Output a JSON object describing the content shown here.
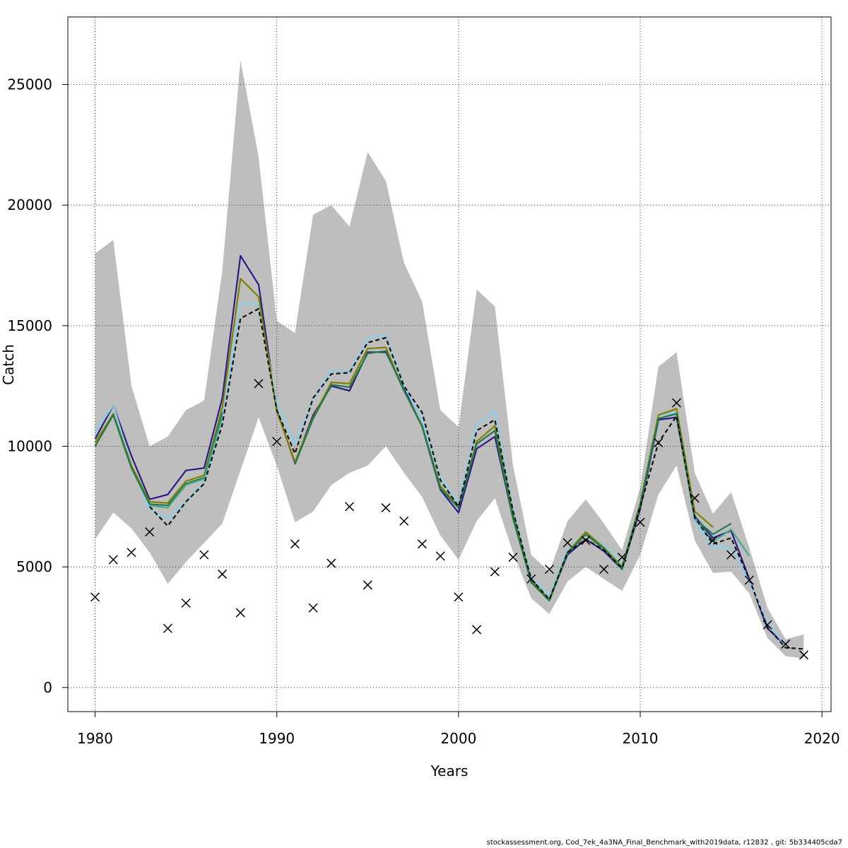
{
  "chart_data": {
    "type": "line",
    "xlabel": "Years",
    "ylabel": "Catch",
    "xlim": [
      1978.5,
      2020.5
    ],
    "ylim": [
      -1000,
      27800
    ],
    "xticks": [
      1980,
      1990,
      2000,
      2010,
      2020
    ],
    "yticks": [
      0,
      5000,
      10000,
      15000,
      20000,
      25000
    ],
    "grid": true,
    "years": [
      1980,
      1981,
      1982,
      1983,
      1984,
      1985,
      1986,
      1987,
      1988,
      1989,
      1990,
      1991,
      1992,
      1993,
      1994,
      1995,
      1996,
      1997,
      1998,
      1999,
      2000,
      2001,
      2002,
      2003,
      2004,
      2005,
      2006,
      2007,
      2008,
      2009,
      2010,
      2011,
      2012,
      2013,
      2014,
      2015,
      2016,
      2017,
      2018,
      2019
    ],
    "band": {
      "upper": [
        18000,
        18550,
        12500,
        10000,
        10400,
        11500,
        11900,
        17300,
        26000,
        22000,
        15200,
        14700,
        19600,
        20000,
        19100,
        22200,
        21000,
        17600,
        16000,
        11500,
        10800,
        16500,
        15800,
        9200,
        5500,
        4800,
        6900,
        7800,
        6800,
        5700,
        8300,
        13300,
        13900,
        8900,
        7200,
        8100,
        5800,
        3300,
        2000,
        2200
      ],
      "lower": [
        6150,
        7250,
        6600,
        5600,
        4300,
        5200,
        6000,
        6800,
        9000,
        11200,
        9200,
        6850,
        7300,
        8400,
        8900,
        9200,
        10000,
        8900,
        7900,
        6300,
        5300,
        6900,
        7850,
        5600,
        3700,
        3050,
        4400,
        5000,
        4500,
        4000,
        5500,
        8000,
        9200,
        6100,
        4750,
        4800,
        3900,
        2050,
        1300,
        1200
      ]
    },
    "series": [
      {
        "color": "#2e1a87",
        "dash": "",
        "values": [
          10300,
          11700,
          9600,
          7800,
          8000,
          9000,
          9100,
          12000,
          17900,
          16700,
          11500,
          9300,
          11300,
          12500,
          12300,
          13900,
          13900,
          12400,
          10800,
          8200,
          7250,
          9900,
          10400,
          7000,
          4400,
          3650,
          5500,
          6150,
          5650,
          4900,
          7400,
          11100,
          11200,
          7100,
          6200,
          6500,
          4500,
          2450,
          1750,
          null
        ]
      },
      {
        "color": "#87ceeb",
        "dash": "",
        "values": [
          10600,
          11700,
          9200,
          7400,
          7000,
          7700,
          8500,
          11100,
          15900,
          15900,
          11800,
          10100,
          11950,
          13150,
          13050,
          14500,
          14600,
          12500,
          11100,
          8700,
          7600,
          10900,
          11450,
          7400,
          4600,
          3750,
          5700,
          6400,
          5900,
          5100,
          7700,
          11300,
          11400,
          6900,
          5800,
          5800,
          4400,
          2700,
          1700,
          null
        ]
      },
      {
        "color": "#808000",
        "dash": "",
        "values": [
          10150,
          11350,
          9200,
          7700,
          7650,
          8550,
          8800,
          11600,
          16950,
          16200,
          11450,
          9350,
          11200,
          12650,
          12600,
          14050,
          14100,
          12300,
          10800,
          8350,
          7500,
          10200,
          10850,
          7200,
          4450,
          3650,
          5600,
          6450,
          5800,
          5000,
          7650,
          11300,
          11550,
          7300,
          6650,
          null,
          null,
          null,
          null,
          null
        ]
      },
      {
        "color": "#1e7a4a",
        "dash": "",
        "values": [
          10000,
          11300,
          9100,
          7600,
          7550,
          8450,
          8700,
          11400,
          null,
          null,
          null,
          9250,
          11150,
          12550,
          12450,
          13850,
          13950,
          12300,
          10850,
          8250,
          7450,
          10100,
          10650,
          7000,
          4350,
          3600,
          5550,
          6350,
          5750,
          4900,
          7550,
          11150,
          11350,
          7000,
          6350,
          6800,
          null,
          null,
          null,
          null
        ]
      },
      {
        "color": "#4aa88c",
        "dash": "",
        "values": [
          null,
          null,
          null,
          7550,
          7450,
          8400,
          8650,
          11200,
          null,
          null,
          null,
          null,
          null,
          null,
          null,
          null,
          null,
          null,
          null,
          null,
          null,
          null,
          null,
          null,
          null,
          null,
          null,
          null,
          null,
          null,
          null,
          null,
          null,
          7050,
          6050,
          6550,
          5450,
          null,
          null,
          null
        ]
      },
      {
        "color": "#111111",
        "dash": "6,4",
        "values": [
          null,
          null,
          null,
          7500,
          6700,
          7700,
          8450,
          10900,
          15300,
          15700,
          11500,
          9700,
          12000,
          13000,
          13050,
          14300,
          14500,
          12500,
          11400,
          8600,
          7500,
          10650,
          11100,
          7300,
          4500,
          3650,
          5600,
          6150,
          5700,
          4950,
          7500,
          10150,
          11250,
          7050,
          5950,
          6200,
          4500,
          2500,
          1650,
          1600
        ]
      }
    ],
    "observed": {
      "x": [
        1980,
        1981,
        1982,
        1983,
        1984,
        1985,
        1986,
        1987,
        1988,
        1989,
        1990,
        1991,
        1992,
        1993,
        1994,
        1995,
        1996,
        1997,
        1998,
        1999,
        2000,
        2001,
        2002,
        2003,
        2004,
        2005,
        2006,
        2007,
        2008,
        2009,
        2010,
        2011,
        2012,
        2013,
        2014,
        2015,
        2016,
        2017,
        2018,
        2019
      ],
      "y": [
        3750,
        5300,
        5600,
        6450,
        2450,
        3500,
        5500,
        4700,
        3100,
        12600,
        10200,
        5950,
        3300,
        5150,
        7500,
        4250,
        7450,
        6900,
        5950,
        5450,
        3750,
        2400,
        4800,
        5400,
        4500,
        4900,
        6000,
        6100,
        4900,
        5400,
        6850,
        10150,
        11800,
        7850,
        6100,
        5500,
        4450,
        2600,
        1800,
        1350
      ]
    }
  },
  "footer": "stockassessment.org, Cod_7ek_4a3NA_Final_Benchmark_with2019data, r12832 , git: 5b334405cda7"
}
